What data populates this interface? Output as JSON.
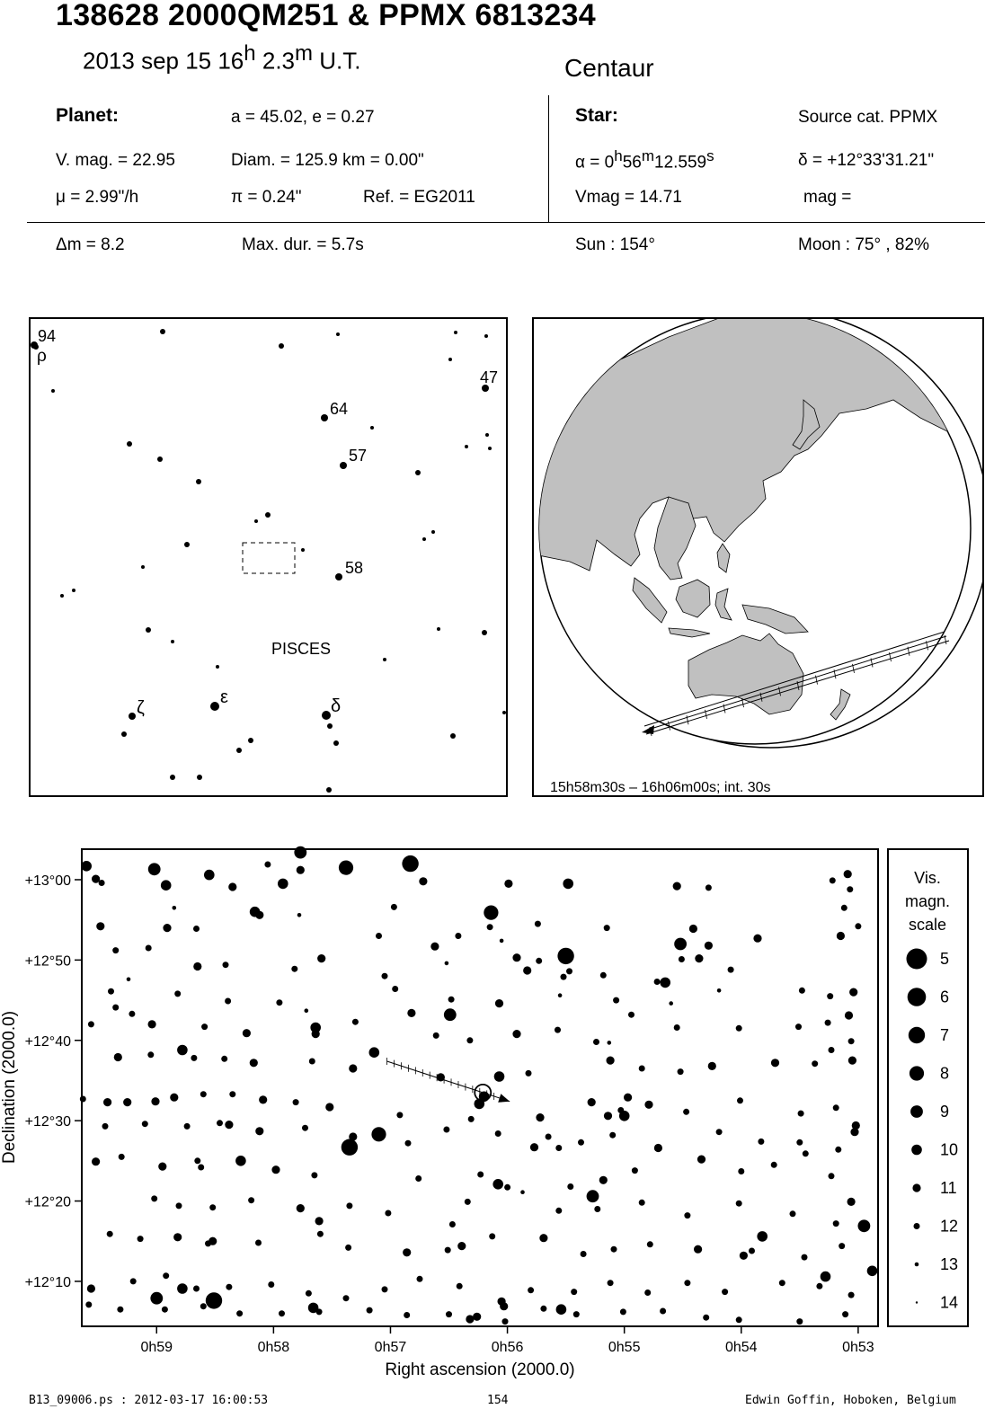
{
  "header": {
    "title": "138628 2000QM251  &  PPMX 6813234",
    "date_main": "2013 sep 15  16",
    "date_h": "h",
    "date_min": " 2.3",
    "date_m": "m",
    "date_ut": " U.T.",
    "group": "Centaur"
  },
  "planet": {
    "heading": "Planet:",
    "orbit": "a = 45.02, e = 0.27",
    "vmag": "V. mag. = 22.95",
    "diam": "Diam. = 125.9 km = 0.00\"",
    "motion": "μ =  2.99\"/h",
    "parallax": "π =  0.24\"",
    "ref": "Ref. = EG2011"
  },
  "star": {
    "heading": "Star:",
    "source": "Source cat.  PPMX",
    "ra_prefix": "α =  0",
    "ra_h": "h",
    "ra_min": "56",
    "ra_m": "m",
    "ra_sec": "12.559",
    "ra_s": "s",
    "dec": "δ = +12°33'31.21\"",
    "vmag": "Vmag = 14.71",
    "mag": "mag ="
  },
  "event": {
    "delta_m": "Δm = 8.2",
    "max_dur": "Max. dur. = 5.7s",
    "sun": "Sun : 154°",
    "moon": "Moon :  75° , 82%"
  },
  "finder": {
    "constellation": "PISCES",
    "labels": [
      {
        "text": "94",
        "id": "94"
      },
      {
        "text": "ρ",
        "id": "rho"
      },
      {
        "text": "47",
        "id": "47"
      },
      {
        "text": "64",
        "id": "64"
      },
      {
        "text": "57",
        "id": "57"
      },
      {
        "text": "58",
        "id": "58"
      },
      {
        "text": "ζ",
        "id": "zeta"
      },
      {
        "text": "ε",
        "id": "epsilon"
      },
      {
        "text": "δ",
        "id": "delta"
      }
    ]
  },
  "globe": {
    "caption": "15h58m30s – 16h06m00s; int. 30s",
    "land_color": "#c0c0c0",
    "ocean_color": "#ffffff"
  },
  "chart_data": {
    "type": "scatter",
    "title": "",
    "xlabel": "Right ascension (2000.0)",
    "ylabel": "Declination (2000.0)",
    "x_ticks": [
      "0h59",
      "0h58",
      "0h57",
      "0h56",
      "0h55",
      "0h54",
      "0h53"
    ],
    "x_tick_values_min": [
      59,
      58,
      57,
      56,
      55,
      54,
      53
    ],
    "y_ticks": [
      "+13°00",
      "+12°50",
      "+12°40",
      "+12°30",
      "+12°20",
      "+12°10"
    ],
    "y_tick_values_arcmin": [
      780,
      770,
      760,
      750,
      740,
      730
    ],
    "xlim_ra_min": [
      59.64,
      52.83
    ],
    "ylim_dec_arcmin": [
      724.4,
      783.8
    ],
    "target": {
      "ra_min": 56.21,
      "dec_arcmin": 753.5
    },
    "path": {
      "start": [
        57.03,
        757.4
      ],
      "end": [
        55.98,
        752.4
      ],
      "ticks": 16
    },
    "stars": [
      [
        59.02,
        781.3,
        9
      ],
      [
        58.55,
        780.6,
        10
      ],
      [
        58.05,
        781.9,
        12
      ],
      [
        57.38,
        781.5,
        8
      ],
      [
        56.83,
        782.0,
        7
      ],
      [
        57.77,
        783.4,
        9
      ],
      [
        59.52,
        780.1,
        11
      ],
      [
        58.92,
        779.3,
        10
      ],
      [
        58.35,
        779.1,
        11
      ],
      [
        57.92,
        779.5,
        10
      ],
      [
        56.72,
        779.8,
        11
      ],
      [
        55.99,
        779.5,
        11
      ],
      [
        55.48,
        779.5,
        10
      ],
      [
        54.55,
        779.2,
        11
      ],
      [
        54.28,
        779.0,
        12
      ],
      [
        53.22,
        779.9,
        12
      ],
      [
        53.09,
        780.7,
        11
      ],
      [
        53.0,
        774.2,
        12
      ],
      [
        53.15,
        773.0,
        11
      ],
      [
        53.12,
        776.5,
        12
      ],
      [
        53.07,
        778.8,
        12
      ],
      [
        59.35,
        771.2,
        12
      ],
      [
        59.07,
        771.5,
        12
      ],
      [
        58.41,
        769.4,
        12
      ],
      [
        58.65,
        769.2,
        11
      ],
      [
        57.82,
        768.9,
        12
      ],
      [
        57.59,
        770.2,
        11
      ],
      [
        56.96,
        766.4,
        12
      ],
      [
        57.05,
        768.0,
        12
      ],
      [
        56.52,
        769.6,
        13
      ],
      [
        56.05,
        772.4,
        13
      ],
      [
        55.92,
        770.3,
        11
      ],
      [
        55.52,
        767.9,
        12
      ],
      [
        55.73,
        769.9,
        12
      ],
      [
        55.47,
        768.6,
        12
      ],
      [
        55.18,
        768.1,
        12
      ],
      [
        54.72,
        767.3,
        12
      ],
      [
        54.36,
        770.2,
        11
      ],
      [
        54.09,
        768.8,
        12
      ],
      [
        54.28,
        771.8,
        11
      ],
      [
        54.51,
        770.1,
        12
      ],
      [
        53.86,
        772.7,
        11
      ],
      [
        58.12,
        775.6,
        11
      ],
      [
        58.66,
        773.9,
        12
      ],
      [
        58.91,
        774.0,
        11
      ],
      [
        59.48,
        774.2,
        11
      ],
      [
        58.85,
        776.5,
        13
      ],
      [
        57.78,
        775.6,
        13
      ],
      [
        56.42,
        773.0,
        12
      ],
      [
        56.62,
        771.7,
        11
      ],
      [
        56.15,
        774.1,
        12
      ],
      [
        55.74,
        774.5,
        12
      ],
      [
        55.15,
        774.0,
        12
      ],
      [
        54.41,
        773.9,
        11
      ],
      [
        59.24,
        767.6,
        13
      ],
      [
        59.39,
        766.1,
        12
      ],
      [
        59.35,
        764.1,
        12
      ],
      [
        58.82,
        765.8,
        12
      ],
      [
        58.39,
        764.9,
        12
      ],
      [
        57.95,
        764.7,
        12
      ],
      [
        57.72,
        763.7,
        13
      ],
      [
        56.48,
        765.1,
        12
      ],
      [
        56.07,
        764.6,
        11
      ],
      [
        55.55,
        765.6,
        13
      ],
      [
        55.07,
        765.0,
        12
      ],
      [
        54.94,
        763.2,
        12
      ],
      [
        54.6,
        764.6,
        13
      ],
      [
        54.19,
        766.2,
        13
      ],
      [
        53.48,
        766.2,
        12
      ],
      [
        53.24,
        765.5,
        12
      ],
      [
        53.04,
        766.0,
        11
      ],
      [
        53.08,
        763.1,
        11
      ],
      [
        59.56,
        762.0,
        12
      ],
      [
        59.21,
        763.3,
        12
      ],
      [
        59.04,
        762.0,
        11
      ],
      [
        58.59,
        761.7,
        12
      ],
      [
        58.23,
        760.9,
        11
      ],
      [
        57.64,
        760.8,
        11
      ],
      [
        57.3,
        762.3,
        12
      ],
      [
        56.82,
        763.4,
        11
      ],
      [
        56.61,
        760.6,
        12
      ],
      [
        56.32,
        760.0,
        12
      ],
      [
        55.92,
        760.8,
        11
      ],
      [
        55.57,
        761.3,
        12
      ],
      [
        55.24,
        759.8,
        12
      ],
      [
        55.13,
        759.7,
        13
      ],
      [
        54.55,
        761.6,
        12
      ],
      [
        54.02,
        761.5,
        12
      ],
      [
        53.51,
        761.7,
        12
      ],
      [
        53.26,
        762.2,
        12
      ],
      [
        53.06,
        759.9,
        12
      ],
      [
        59.33,
        757.9,
        11
      ],
      [
        59.05,
        758.2,
        12
      ],
      [
        58.68,
        757.8,
        12
      ],
      [
        58.42,
        757.7,
        12
      ],
      [
        58.17,
        757.2,
        11
      ],
      [
        57.67,
        757.4,
        12
      ],
      [
        57.32,
        756.5,
        11
      ],
      [
        56.57,
        755.4,
        11
      ],
      [
        55.82,
        755.9,
        12
      ],
      [
        55.12,
        757.5,
        11
      ],
      [
        54.85,
        756.5,
        12
      ],
      [
        54.52,
        756.1,
        12
      ],
      [
        54.25,
        756.8,
        11
      ],
      [
        53.71,
        757.2,
        11
      ],
      [
        53.37,
        757.1,
        12
      ],
      [
        53.23,
        758.8,
        12
      ],
      [
        53.05,
        757.5,
        11
      ],
      [
        59.63,
        752.7,
        12
      ],
      [
        59.42,
        752.3,
        11
      ],
      [
        59.25,
        752.3,
        11
      ],
      [
        59.01,
        752.4,
        11
      ],
      [
        58.85,
        752.9,
        11
      ],
      [
        58.6,
        753.3,
        12
      ],
      [
        58.09,
        752.6,
        11
      ],
      [
        57.81,
        752.3,
        12
      ],
      [
        57.52,
        751.7,
        11
      ],
      [
        56.92,
        750.7,
        12
      ],
      [
        56.31,
        750.2,
        12
      ],
      [
        55.72,
        750.4,
        11
      ],
      [
        55.28,
        752.3,
        11
      ],
      [
        55.03,
        751.3,
        12
      ],
      [
        54.79,
        752.0,
        11
      ],
      [
        54.47,
        751.1,
        12
      ],
      [
        54.01,
        752.5,
        12
      ],
      [
        53.49,
        750.9,
        12
      ],
      [
        53.19,
        751.6,
        12
      ],
      [
        53.02,
        749.4,
        11
      ],
      [
        59.44,
        749.3,
        12
      ],
      [
        59.1,
        749.6,
        12
      ],
      [
        58.74,
        749.3,
        12
      ],
      [
        58.38,
        749.5,
        11
      ],
      [
        58.12,
        748.7,
        11
      ],
      [
        57.73,
        749.1,
        12
      ],
      [
        57.32,
        748.0,
        11
      ],
      [
        56.85,
        747.2,
        12
      ],
      [
        56.52,
        748.9,
        12
      ],
      [
        56.08,
        748.4,
        12
      ],
      [
        55.65,
        748.0,
        12
      ],
      [
        55.37,
        747.3,
        12
      ],
      [
        55.1,
        748.2,
        12
      ],
      [
        54.71,
        746.6,
        11
      ],
      [
        54.19,
        748.6,
        12
      ],
      [
        53.83,
        747.4,
        12
      ],
      [
        53.5,
        747.3,
        12
      ],
      [
        53.17,
        746.4,
        12
      ],
      [
        53.03,
        748.6,
        11
      ],
      [
        59.52,
        744.9,
        11
      ],
      [
        59.3,
        745.5,
        12
      ],
      [
        58.95,
        744.3,
        11
      ],
      [
        58.62,
        744.2,
        12
      ],
      [
        58.28,
        745.0,
        12
      ],
      [
        57.98,
        743.9,
        11
      ],
      [
        57.65,
        743.2,
        12
      ],
      [
        56.76,
        742.8,
        12
      ],
      [
        56.23,
        743.3,
        12
      ],
      [
        56.0,
        741.7,
        12
      ],
      [
        55.46,
        741.8,
        12
      ],
      [
        55.18,
        742.6,
        11
      ],
      [
        54.91,
        743.8,
        12
      ],
      [
        54.34,
        745.2,
        11
      ],
      [
        54.0,
        743.7,
        12
      ],
      [
        53.72,
        744.5,
        12
      ],
      [
        53.45,
        745.9,
        12
      ],
      [
        53.23,
        743.1,
        12
      ],
      [
        59.02,
        740.3,
        12
      ],
      [
        58.81,
        739.4,
        12
      ],
      [
        58.52,
        739.2,
        12
      ],
      [
        58.19,
        740.1,
        12
      ],
      [
        57.77,
        739.1,
        11
      ],
      [
        57.35,
        739.4,
        12
      ],
      [
        57.02,
        738.5,
        12
      ],
      [
        56.34,
        739.9,
        12
      ],
      [
        55.87,
        741.1,
        13
      ],
      [
        55.56,
        738.8,
        12
      ],
      [
        55.23,
        739.0,
        12
      ],
      [
        54.85,
        739.8,
        12
      ],
      [
        54.46,
        738.2,
        12
      ],
      [
        54.02,
        739.7,
        12
      ],
      [
        53.56,
        738.4,
        12
      ],
      [
        53.19,
        737.2,
        12
      ],
      [
        59.4,
        735.9,
        12
      ],
      [
        59.14,
        735.3,
        12
      ],
      [
        58.82,
        735.5,
        11
      ],
      [
        58.56,
        734.7,
        12
      ],
      [
        58.13,
        734.8,
        12
      ],
      [
        57.6,
        735.9,
        12
      ],
      [
        57.36,
        734.2,
        12
      ],
      [
        56.86,
        733.6,
        11
      ],
      [
        56.51,
        733.9,
        12
      ],
      [
        56.39,
        734.4,
        11
      ],
      [
        56.13,
        735.6,
        12
      ],
      [
        55.69,
        735.4,
        11
      ],
      [
        55.35,
        733.4,
        12
      ],
      [
        55.09,
        734.0,
        12
      ],
      [
        54.78,
        734.6,
        12
      ],
      [
        54.37,
        734.0,
        11
      ],
      [
        53.98,
        733.2,
        11
      ],
      [
        53.46,
        733.0,
        12
      ],
      [
        53.14,
        734.4,
        12
      ],
      [
        59.2,
        730.0,
        12
      ],
      [
        58.92,
        730.7,
        12
      ],
      [
        58.66,
        729.1,
        12
      ],
      [
        58.38,
        729.3,
        12
      ],
      [
        58.02,
        729.6,
        12
      ],
      [
        57.7,
        728.5,
        12
      ],
      [
        57.38,
        727.9,
        12
      ],
      [
        57.05,
        729.0,
        12
      ],
      [
        56.75,
        730.3,
        12
      ],
      [
        56.41,
        729.4,
        12
      ],
      [
        56.05,
        727.5,
        11
      ],
      [
        55.8,
        728.9,
        12
      ],
      [
        55.43,
        728.7,
        12
      ],
      [
        55.12,
        729.8,
        12
      ],
      [
        54.8,
        728.6,
        12
      ],
      [
        54.46,
        729.8,
        12
      ],
      [
        54.14,
        728.7,
        12
      ],
      [
        53.65,
        729.8,
        12
      ],
      [
        53.33,
        729.4,
        12
      ],
      [
        53.06,
        728.3,
        12
      ],
      [
        59.58,
        727.1,
        12
      ],
      [
        59.31,
        726.5,
        12
      ],
      [
        58.93,
        726.5,
        12
      ],
      [
        58.6,
        726.9,
        12
      ],
      [
        58.29,
        726.0,
        12
      ],
      [
        57.93,
        726.0,
        12
      ],
      [
        57.61,
        726.2,
        12
      ],
      [
        57.18,
        726.4,
        12
      ],
      [
        56.86,
        725.8,
        12
      ],
      [
        56.5,
        725.9,
        12
      ],
      [
        56.26,
        725.6,
        11
      ],
      [
        56.02,
        725.0,
        12
      ],
      [
        55.69,
        726.6,
        12
      ],
      [
        55.41,
        725.9,
        12
      ],
      [
        55.01,
        726.2,
        12
      ],
      [
        54.67,
        726.3,
        12
      ],
      [
        54.3,
        725.5,
        12
      ],
      [
        54.02,
        725.2,
        12
      ],
      [
        53.5,
        725.0,
        12
      ],
      [
        53.11,
        725.9,
        12
      ],
      [
        59.6,
        781.7,
        10
      ],
      [
        59.47,
        779.6,
        12
      ],
      [
        58.16,
        776.0,
        10
      ],
      [
        57.77,
        781.2,
        11
      ],
      [
        56.97,
        776.6,
        12
      ],
      [
        56.14,
        775.9,
        8
      ],
      [
        55.5,
        770.5,
        7
      ],
      [
        54.65,
        767.2,
        10
      ],
      [
        54.52,
        772.0,
        9
      ],
      [
        55.83,
        768.7,
        11
      ],
      [
        57.1,
        773.0,
        12
      ],
      [
        56.49,
        763.2,
        9
      ],
      [
        57.64,
        761.6,
        10
      ],
      [
        58.78,
        758.8,
        10
      ],
      [
        57.14,
        758.5,
        10
      ],
      [
        56.07,
        755.5,
        10
      ],
      [
        55.77,
        746.7,
        11
      ],
      [
        55.0,
        750.6,
        10
      ],
      [
        58.28,
        745.0,
        10
      ],
      [
        58.46,
        749.7,
        12
      ],
      [
        57.35,
        746.7,
        7
      ],
      [
        57.1,
        748.3,
        8
      ],
      [
        58.52,
        735.0,
        11
      ],
      [
        57.61,
        737.5,
        11
      ],
      [
        56.47,
        737.1,
        12
      ],
      [
        56.08,
        742.1,
        10
      ],
      [
        55.27,
        740.6,
        9
      ],
      [
        53.91,
        733.8,
        12
      ],
      [
        53.82,
        735.6,
        10
      ],
      [
        52.88,
        731.3,
        10
      ],
      [
        59.56,
        729.1,
        11
      ],
      [
        59.0,
        727.9,
        9
      ],
      [
        58.78,
        729.1,
        10
      ],
      [
        58.51,
        727.6,
        7
      ],
      [
        57.66,
        726.7,
        10
      ],
      [
        56.32,
        725.3,
        11
      ],
      [
        55.54,
        726.5,
        10
      ],
      [
        56.03,
        726.9,
        11
      ],
      [
        53.28,
        730.6,
        10
      ],
      [
        53.06,
        739.9,
        11
      ],
      [
        52.95,
        736.9,
        9
      ],
      [
        55.14,
        750.6,
        11
      ],
      [
        55.56,
        746.6,
        12
      ],
      [
        54.97,
        752.9,
        11
      ],
      [
        56.2,
        753.0,
        10
      ],
      [
        56.24,
        752.1,
        10
      ],
      [
        58.65,
        745.0,
        12
      ],
      [
        58.35,
        753.3,
        12
      ]
    ],
    "legend": {
      "title": [
        "Vis.",
        "magn.",
        "scale"
      ],
      "mags": [
        "5",
        "6",
        "7",
        "8",
        "9",
        "10",
        "11",
        "12",
        "13",
        "14"
      ]
    }
  },
  "footer": {
    "file": "B13_09006.ps : 2012-03-17 16:00:53",
    "page": "154",
    "author": "Edwin Goffin, Hoboken, Belgium"
  }
}
